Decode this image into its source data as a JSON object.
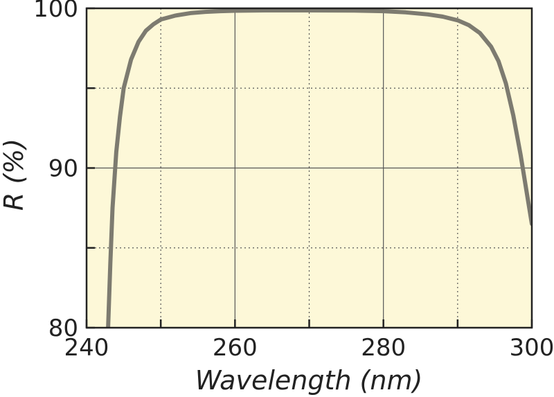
{
  "chart_data": {
    "type": "line",
    "xlabel": "Wavelength (nm)",
    "ylabel": "R (%)",
    "xlim": [
      240,
      300
    ],
    "ylim": [
      80,
      100
    ],
    "x_ticks": [
      240,
      260,
      280,
      300
    ],
    "y_ticks": [
      80,
      90,
      100
    ],
    "x_minor_ticks": [
      250,
      270,
      290
    ],
    "y_minor_ticks": [
      85,
      95
    ],
    "grid": "major solid, minor dotted",
    "colors": {
      "plot_background": "#fdf8d8",
      "line": "#7d7b70",
      "frame": "#222222"
    },
    "series": [
      {
        "x": [
          242.9,
          243.2,
          243.5,
          244.0,
          244.5,
          245.0,
          246.0,
          247.0,
          248.0,
          249.0,
          250.0,
          252.0,
          254.0,
          256.0,
          258.0,
          260.0,
          264.0,
          270.0,
          276.0,
          280.0,
          283.0,
          286.0,
          288.0,
          290.0,
          291.5,
          293.0,
          294.5,
          295.5,
          296.5,
          297.5,
          298.5,
          299.3,
          300.0
        ],
        "y": [
          80.0,
          84.0,
          87.5,
          91.0,
          93.2,
          95.0,
          96.8,
          97.9,
          98.6,
          99.0,
          99.3,
          99.55,
          99.7,
          99.78,
          99.82,
          99.85,
          99.87,
          99.87,
          99.86,
          99.82,
          99.75,
          99.62,
          99.48,
          99.25,
          98.95,
          98.45,
          97.6,
          96.7,
          95.3,
          93.3,
          90.8,
          88.5,
          86.5
        ]
      }
    ]
  }
}
